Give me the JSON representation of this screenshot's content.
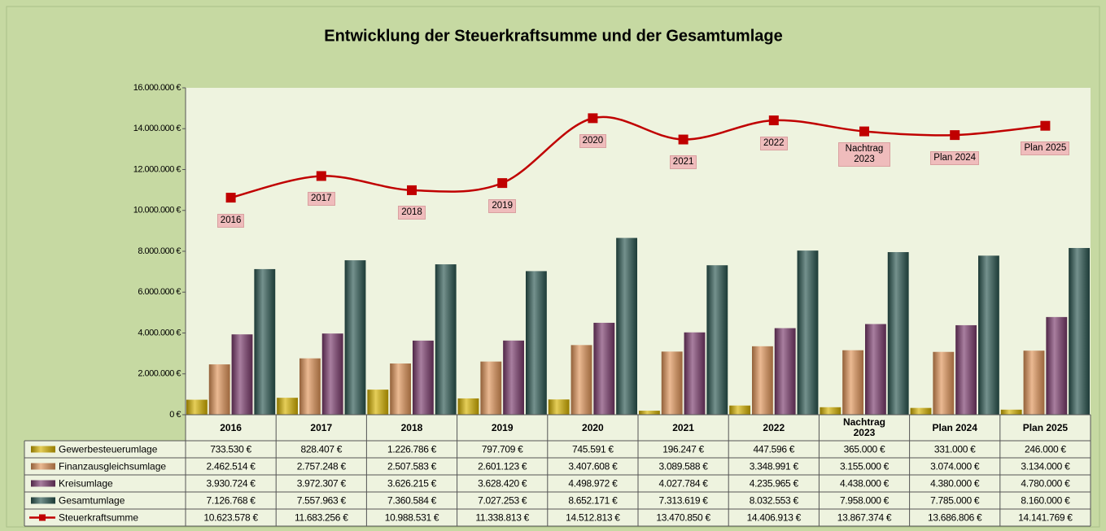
{
  "chart_data": {
    "type": "bar",
    "title": "Entwicklung der Steuerkraftsumme und der Gesamtumlage",
    "categories": [
      "2016",
      "2017",
      "2018",
      "2019",
      "2020",
      "2021",
      "2022",
      "Nachtrag 2023",
      "Plan 2024",
      "Plan 2025"
    ],
    "ylim": [
      0,
      16000000
    ],
    "yticks": [
      {
        "value": 0,
        "label": "0 €"
      },
      {
        "value": 2000000,
        "label": "2.000.000 €"
      },
      {
        "value": 4000000,
        "label": "4.000.000 €"
      },
      {
        "value": 6000000,
        "label": "6.000.000 €"
      },
      {
        "value": 8000000,
        "label": "8.000.000 €"
      },
      {
        "value": 10000000,
        "label": "10.000.000 €"
      },
      {
        "value": 12000000,
        "label": "12.000.000 €"
      },
      {
        "value": 14000000,
        "label": "14.000.000 €"
      },
      {
        "value": 16000000,
        "label": "16.000.000 €"
      }
    ],
    "series": [
      {
        "name": "Gewerbesteuerumlage",
        "type": "bar",
        "color": "#d8b400",
        "values": [
          733530,
          828407,
          1226786,
          797709,
          745591,
          196247,
          447596,
          365000,
          331000,
          246000
        ],
        "value_labels": [
          "733.530 €",
          "828.407 €",
          "1.226.786 €",
          "797.709 €",
          "745.591 €",
          "196.247 €",
          "447.596 €",
          "365.000 €",
          "331.000 €",
          "246.000 €"
        ]
      },
      {
        "name": "Finanzausgleichsumlage",
        "type": "bar",
        "color": "#e09458",
        "values": [
          2462514,
          2757248,
          2507583,
          2601123,
          3407608,
          3089588,
          3348991,
          3155000,
          3074000,
          3134000
        ],
        "value_labels": [
          "2.462.514 €",
          "2.757.248 €",
          "2.507.583 €",
          "2.601.123 €",
          "3.407.608 €",
          "3.089.588 €",
          "3.348.991 €",
          "3.155.000 €",
          "3.074.000 €",
          "3.134.000 €"
        ]
      },
      {
        "name": "Kreisumlage",
        "type": "bar",
        "color": "#7a3a6c",
        "values": [
          3930724,
          3972307,
          3626215,
          3628420,
          4498972,
          4027784,
          4235965,
          4438000,
          4380000,
          4780000
        ],
        "value_labels": [
          "3.930.724 €",
          "3.972.307 €",
          "3.626.215 €",
          "3.628.420 €",
          "4.498.972 €",
          "4.027.784 €",
          "4.235.965 €",
          "4.438.000 €",
          "4.380.000 €",
          "4.780.000 €"
        ]
      },
      {
        "name": "Gesamtumlage",
        "type": "bar",
        "color": "#2a5650",
        "values": [
          7126768,
          7557963,
          7360584,
          7027253,
          8652171,
          7313619,
          8032553,
          7958000,
          7785000,
          8160000
        ],
        "value_labels": [
          "7.126.768 €",
          "7.557.963 €",
          "7.360.584 €",
          "7.027.253 €",
          "8.652.171 €",
          "7.313.619 €",
          "8.032.553 €",
          "7.958.000 €",
          "7.785.000 €",
          "8.160.000 €"
        ]
      },
      {
        "name": "Steuerkraftsumme",
        "type": "line",
        "color": "#c00000",
        "values": [
          10623578,
          11683256,
          10988531,
          11338813,
          14512813,
          13470850,
          14406913,
          13867374,
          13686806,
          14141769
        ],
        "value_labels": [
          "10.623.578 €",
          "11.683.256 €",
          "10.988.531 €",
          "11.338.813 €",
          "14.512.813 €",
          "13.470.850 €",
          "14.406.913 €",
          "13.867.374 €",
          "13.686.806 €",
          "14.141.769 €"
        ]
      }
    ]
  }
}
